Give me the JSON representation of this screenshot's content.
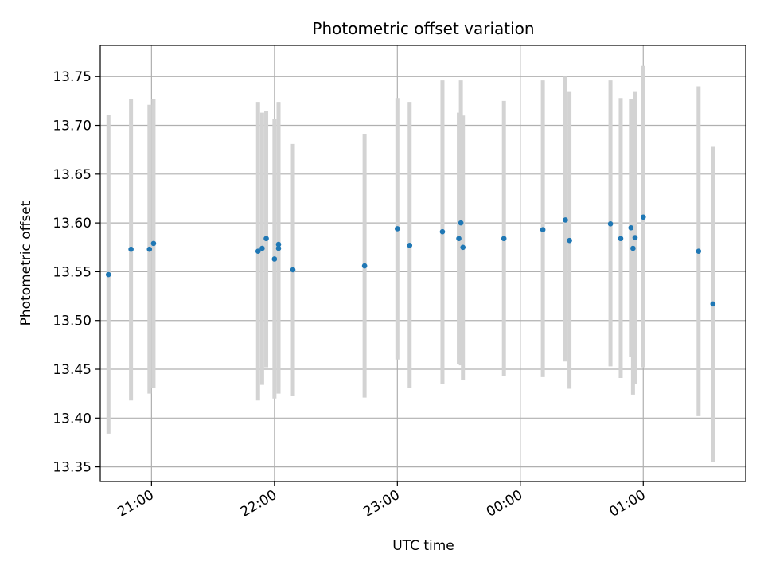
{
  "chart_data": {
    "type": "scatter",
    "title": "Photometric offset variation",
    "xlabel": "UTC time",
    "ylabel": "Photometric offset",
    "x_axis": {
      "kind": "time",
      "range": [
        "20:35",
        "01:50"
      ],
      "ticks": [
        "21:00",
        "22:00",
        "23:00",
        "00:00",
        "01:00"
      ]
    },
    "ylim": [
      13.335,
      13.782
    ],
    "y_ticks": [
      "13.35",
      "13.40",
      "13.45",
      "13.50",
      "13.55",
      "13.60",
      "13.65",
      "13.70",
      "13.75"
    ],
    "grid": true,
    "colors": {
      "points": "#1f77b4",
      "error_bars": "#d3d3d3",
      "grid": "#b0b0b0"
    },
    "series": [
      {
        "error_bars": true,
        "points": [
          {
            "t": "20:39",
            "y": 13.547,
            "lo": 13.384,
            "hi": 13.711
          },
          {
            "t": "20:50",
            "y": 13.573,
            "lo": 13.418,
            "hi": 13.727
          },
          {
            "t": "20:59",
            "y": 13.573,
            "lo": 13.425,
            "hi": 13.721
          },
          {
            "t": "21:01",
            "y": 13.579,
            "lo": 13.431,
            "hi": 13.727
          },
          {
            "t": "21:52",
            "y": 13.571,
            "lo": 13.418,
            "hi": 13.724
          },
          {
            "t": "21:54",
            "y": 13.574,
            "lo": 13.434,
            "hi": 13.713
          },
          {
            "t": "21:56",
            "y": 13.584,
            "lo": 13.452,
            "hi": 13.715
          },
          {
            "t": "22:00",
            "y": 13.563,
            "lo": 13.42,
            "hi": 13.707
          },
          {
            "t": "22:02",
            "y": 13.578,
            "lo": 13.432,
            "hi": 13.724
          },
          {
            "t": "22:02",
            "y": 13.574,
            "lo": 13.425,
            "hi": 13.723
          },
          {
            "t": "22:09",
            "y": 13.552,
            "lo": 13.423,
            "hi": 13.681
          },
          {
            "t": "22:44",
            "y": 13.556,
            "lo": 13.421,
            "hi": 13.691
          },
          {
            "t": "23:00",
            "y": 13.594,
            "lo": 13.46,
            "hi": 13.728
          },
          {
            "t": "23:06",
            "y": 13.577,
            "lo": 13.431,
            "hi": 13.724
          },
          {
            "t": "23:22",
            "y": 13.591,
            "lo": 13.435,
            "hi": 13.746
          },
          {
            "t": "23:30",
            "y": 13.584,
            "lo": 13.455,
            "hi": 13.713
          },
          {
            "t": "23:31",
            "y": 13.6,
            "lo": 13.454,
            "hi": 13.746
          },
          {
            "t": "23:32",
            "y": 13.575,
            "lo": 13.439,
            "hi": 13.71
          },
          {
            "t": "23:52",
            "y": 13.584,
            "lo": 13.443,
            "hi": 13.725
          },
          {
            "t": "00:11",
            "y": 13.593,
            "lo": 13.442,
            "hi": 13.746
          },
          {
            "t": "00:22",
            "y": 13.603,
            "lo": 13.458,
            "hi": 13.75
          },
          {
            "t": "00:24",
            "y": 13.582,
            "lo": 13.43,
            "hi": 13.735
          },
          {
            "t": "00:44",
            "y": 13.599,
            "lo": 13.453,
            "hi": 13.746
          },
          {
            "t": "00:49",
            "y": 13.584,
            "lo": 13.441,
            "hi": 13.728
          },
          {
            "t": "00:54",
            "y": 13.595,
            "lo": 13.463,
            "hi": 13.727
          },
          {
            "t": "00:55",
            "y": 13.574,
            "lo": 13.424,
            "hi": 13.723
          },
          {
            "t": "00:56",
            "y": 13.585,
            "lo": 13.435,
            "hi": 13.735
          },
          {
            "t": "01:00",
            "y": 13.606,
            "lo": 13.452,
            "hi": 13.761
          },
          {
            "t": "01:27",
            "y": 13.571,
            "lo": 13.402,
            "hi": 13.74
          },
          {
            "t": "01:34",
            "y": 13.517,
            "lo": 13.355,
            "hi": 13.678
          }
        ]
      }
    ]
  }
}
